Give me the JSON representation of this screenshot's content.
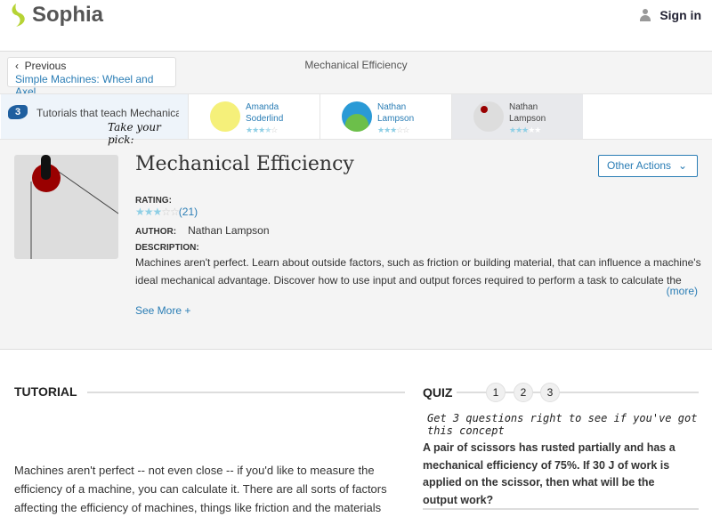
{
  "header": {
    "logo_text": "Sophia",
    "sign_in": "Sign in"
  },
  "nav": {
    "previous_label": "Previous",
    "previous_link": "Simple Machines: Wheel and Axel",
    "breadcrumb_title": "Mechanical Efficiency"
  },
  "tutorials": {
    "count": "3",
    "label": "Tutorials that teach Mechanical Efficiency",
    "pick": "Take your pick:",
    "cards": [
      {
        "author": "Amanda Soderlind",
        "rating": 3.5
      },
      {
        "author": "Nathan Lampson",
        "rating": 3
      },
      {
        "author": "Nathan Lampson",
        "rating": 3,
        "selected": true
      }
    ]
  },
  "tutorial": {
    "title": "Mechanical Efficiency",
    "other_actions": "Other Actions",
    "rating_label": "RATING:",
    "rating": 3,
    "rating_count": "(21)",
    "author_label": "AUTHOR:",
    "author": "Nathan Lampson",
    "description_label": "DESCRIPTION:",
    "description": "Machines aren't perfect. Learn about outside factors, such as friction or building material, that can influence a machine's ideal mechanical advantage. Discover how to use input and output forces required to perform a task to calculate the",
    "more": "(more)",
    "see_more": "See More +"
  },
  "content": {
    "tutorial_heading": "TUTORIAL",
    "text": "Machines aren't perfect -- not even close -- if you'd like to measure the efficiency of a machine, you can calculate it.  There are all sorts of factors affecting the efficiency of machines, things like friction and the materials"
  },
  "quiz": {
    "heading": "QUIZ",
    "steps": [
      "1",
      "2",
      "3"
    ],
    "prompt": "Get 3 questions right to see if you've got this concept",
    "question": "A pair of scissors has rusted partially and has a mechanical efficiency of 75%. If 30 J of work is applied on the scissor, then what will be the output work?"
  },
  "colors": {
    "accent": "#2a7db5",
    "brand_green": "#b6d334",
    "star": "#8fcfe5"
  }
}
